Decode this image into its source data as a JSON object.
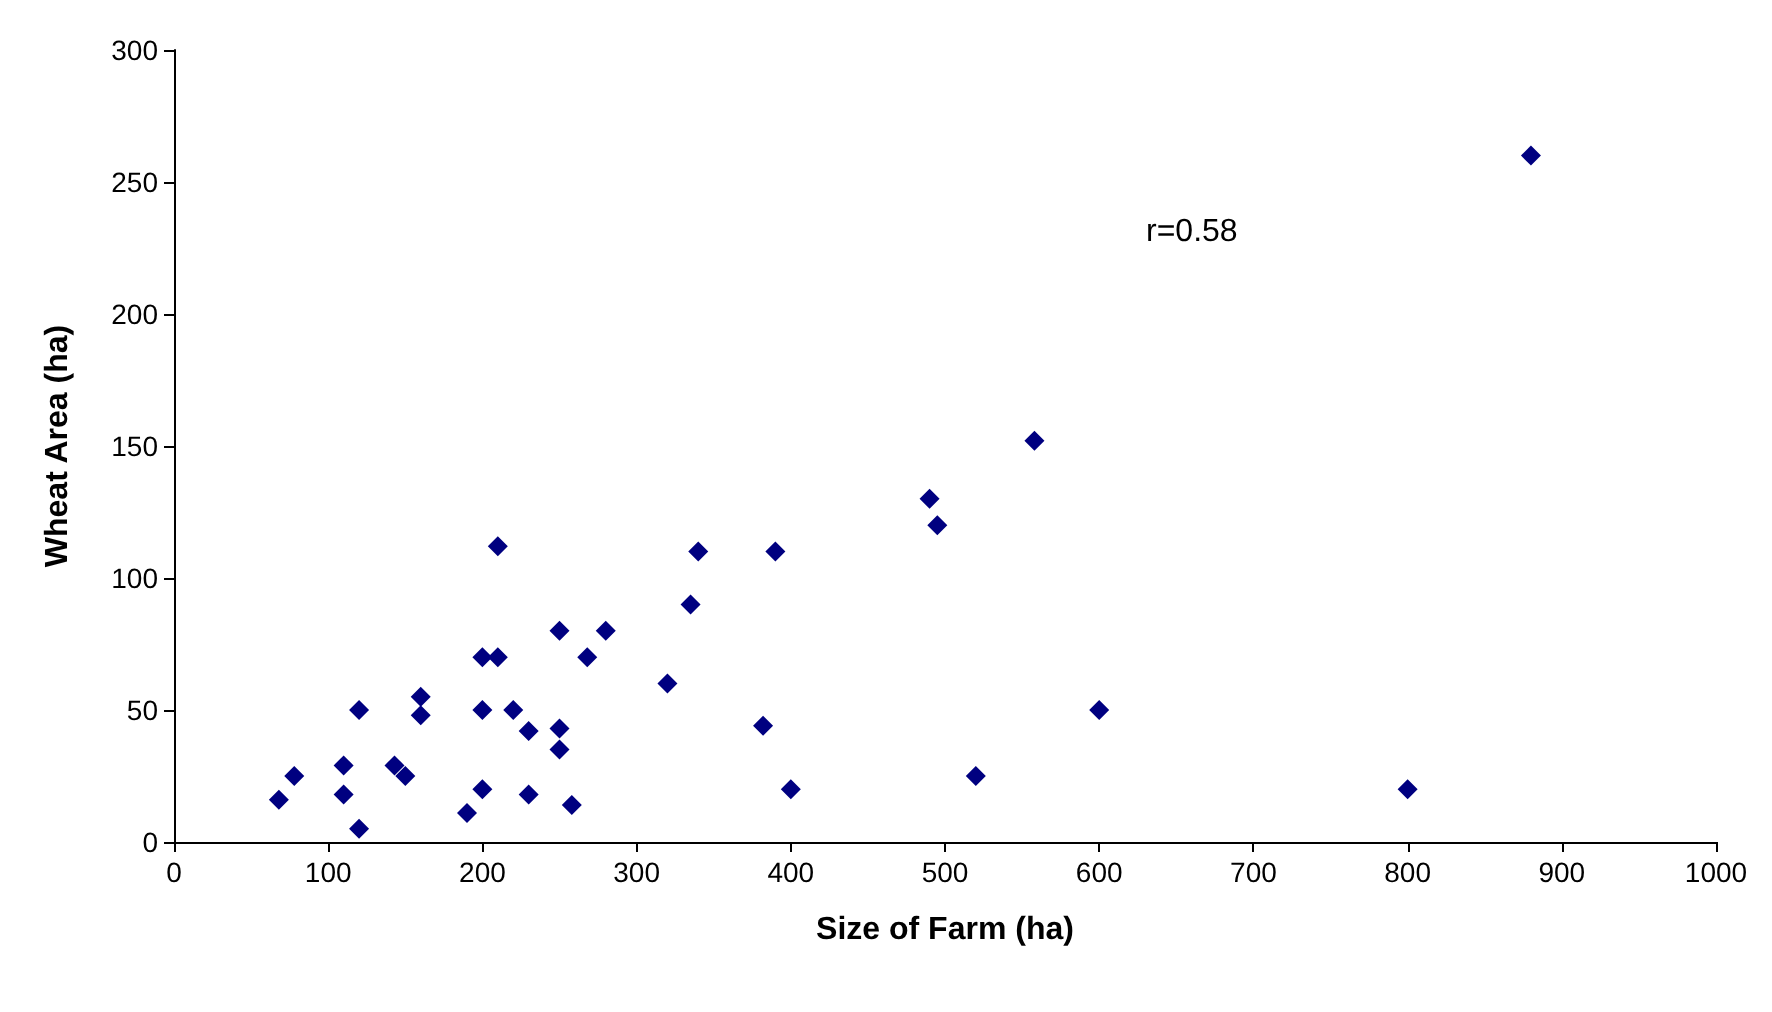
{
  "chart_data": {
    "type": "scatter",
    "xlabel": "Size of Farm (ha)",
    "ylabel": "Wheat Area (ha)",
    "x": [
      68,
      78,
      110,
      110,
      120,
      120,
      143,
      150,
      160,
      160,
      190,
      200,
      200,
      200,
      210,
      210,
      220,
      230,
      230,
      250,
      250,
      250,
      258,
      268,
      280,
      320,
      335,
      340,
      382,
      390,
      400,
      490,
      495,
      520,
      558,
      600,
      800,
      880
    ],
    "series": [
      {
        "color": "#000080",
        "values": [
          16,
          25,
          18,
          29,
          50,
          5,
          29,
          25,
          55,
          48,
          11,
          70,
          50,
          20,
          112,
          70,
          50,
          42,
          18,
          80,
          43,
          35,
          14,
          70,
          80,
          60,
          90,
          110,
          44,
          110,
          20,
          130,
          120,
          25,
          152,
          50,
          20,
          260
        ]
      }
    ],
    "xlim": [
      0,
      1000
    ],
    "xticks": [
      0,
      100,
      200,
      300,
      400,
      500,
      600,
      700,
      800,
      900,
      1000
    ],
    "ylim": [
      0,
      300
    ],
    "yticks": [
      0,
      50,
      100,
      150,
      200,
      250,
      300
    ],
    "marker": "diamond",
    "grid": false,
    "annotations": [
      "r=0.58"
    ]
  }
}
